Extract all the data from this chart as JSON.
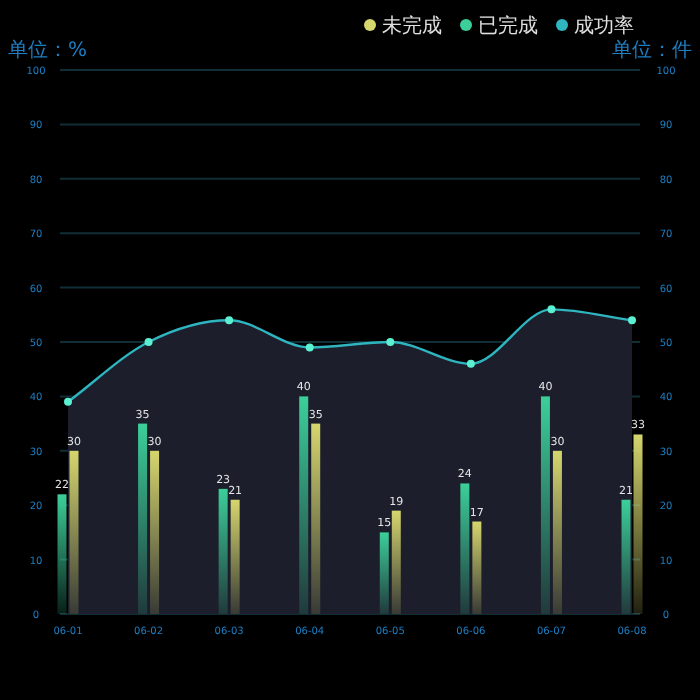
{
  "chart_data": {
    "type": "bar",
    "categories": [
      "06-01",
      "06-02",
      "06-03",
      "06-04",
      "06-05",
      "06-06",
      "06-07",
      "06-08"
    ],
    "series": [
      {
        "name": "未完成",
        "color": "#d6d66e",
        "values": [
          30,
          30,
          21,
          35,
          19,
          17,
          30,
          33
        ],
        "value_labels": [
          "30",
          "30",
          "21",
          "35",
          "19",
          "17",
          "30",
          "33"
        ]
      },
      {
        "name": "已完成",
        "color": "#3ccf9a",
        "values": [
          22,
          35,
          23,
          40,
          15,
          24,
          40,
          21
        ],
        "value_labels": [
          "22",
          "35",
          "23",
          "40",
          "15",
          "24",
          "40",
          "21"
        ]
      },
      {
        "name": "成功率",
        "type": "area",
        "color": "#2fb5c0",
        "marker": "circle",
        "values": [
          39,
          50,
          54,
          49,
          50,
          46,
          56,
          54
        ]
      }
    ],
    "ylabel": "单位：%",
    "y2label": "单位：件",
    "ylim": [
      0,
      100
    ],
    "yticks": [
      0,
      10,
      20,
      30,
      40,
      50,
      60,
      70,
      80,
      90,
      100
    ],
    "y2lim": [
      0,
      100
    ],
    "y2ticks": [
      0,
      10,
      20,
      30,
      40,
      50,
      60,
      70,
      80,
      90,
      100
    ],
    "grid": "y",
    "legend": "top right"
  }
}
